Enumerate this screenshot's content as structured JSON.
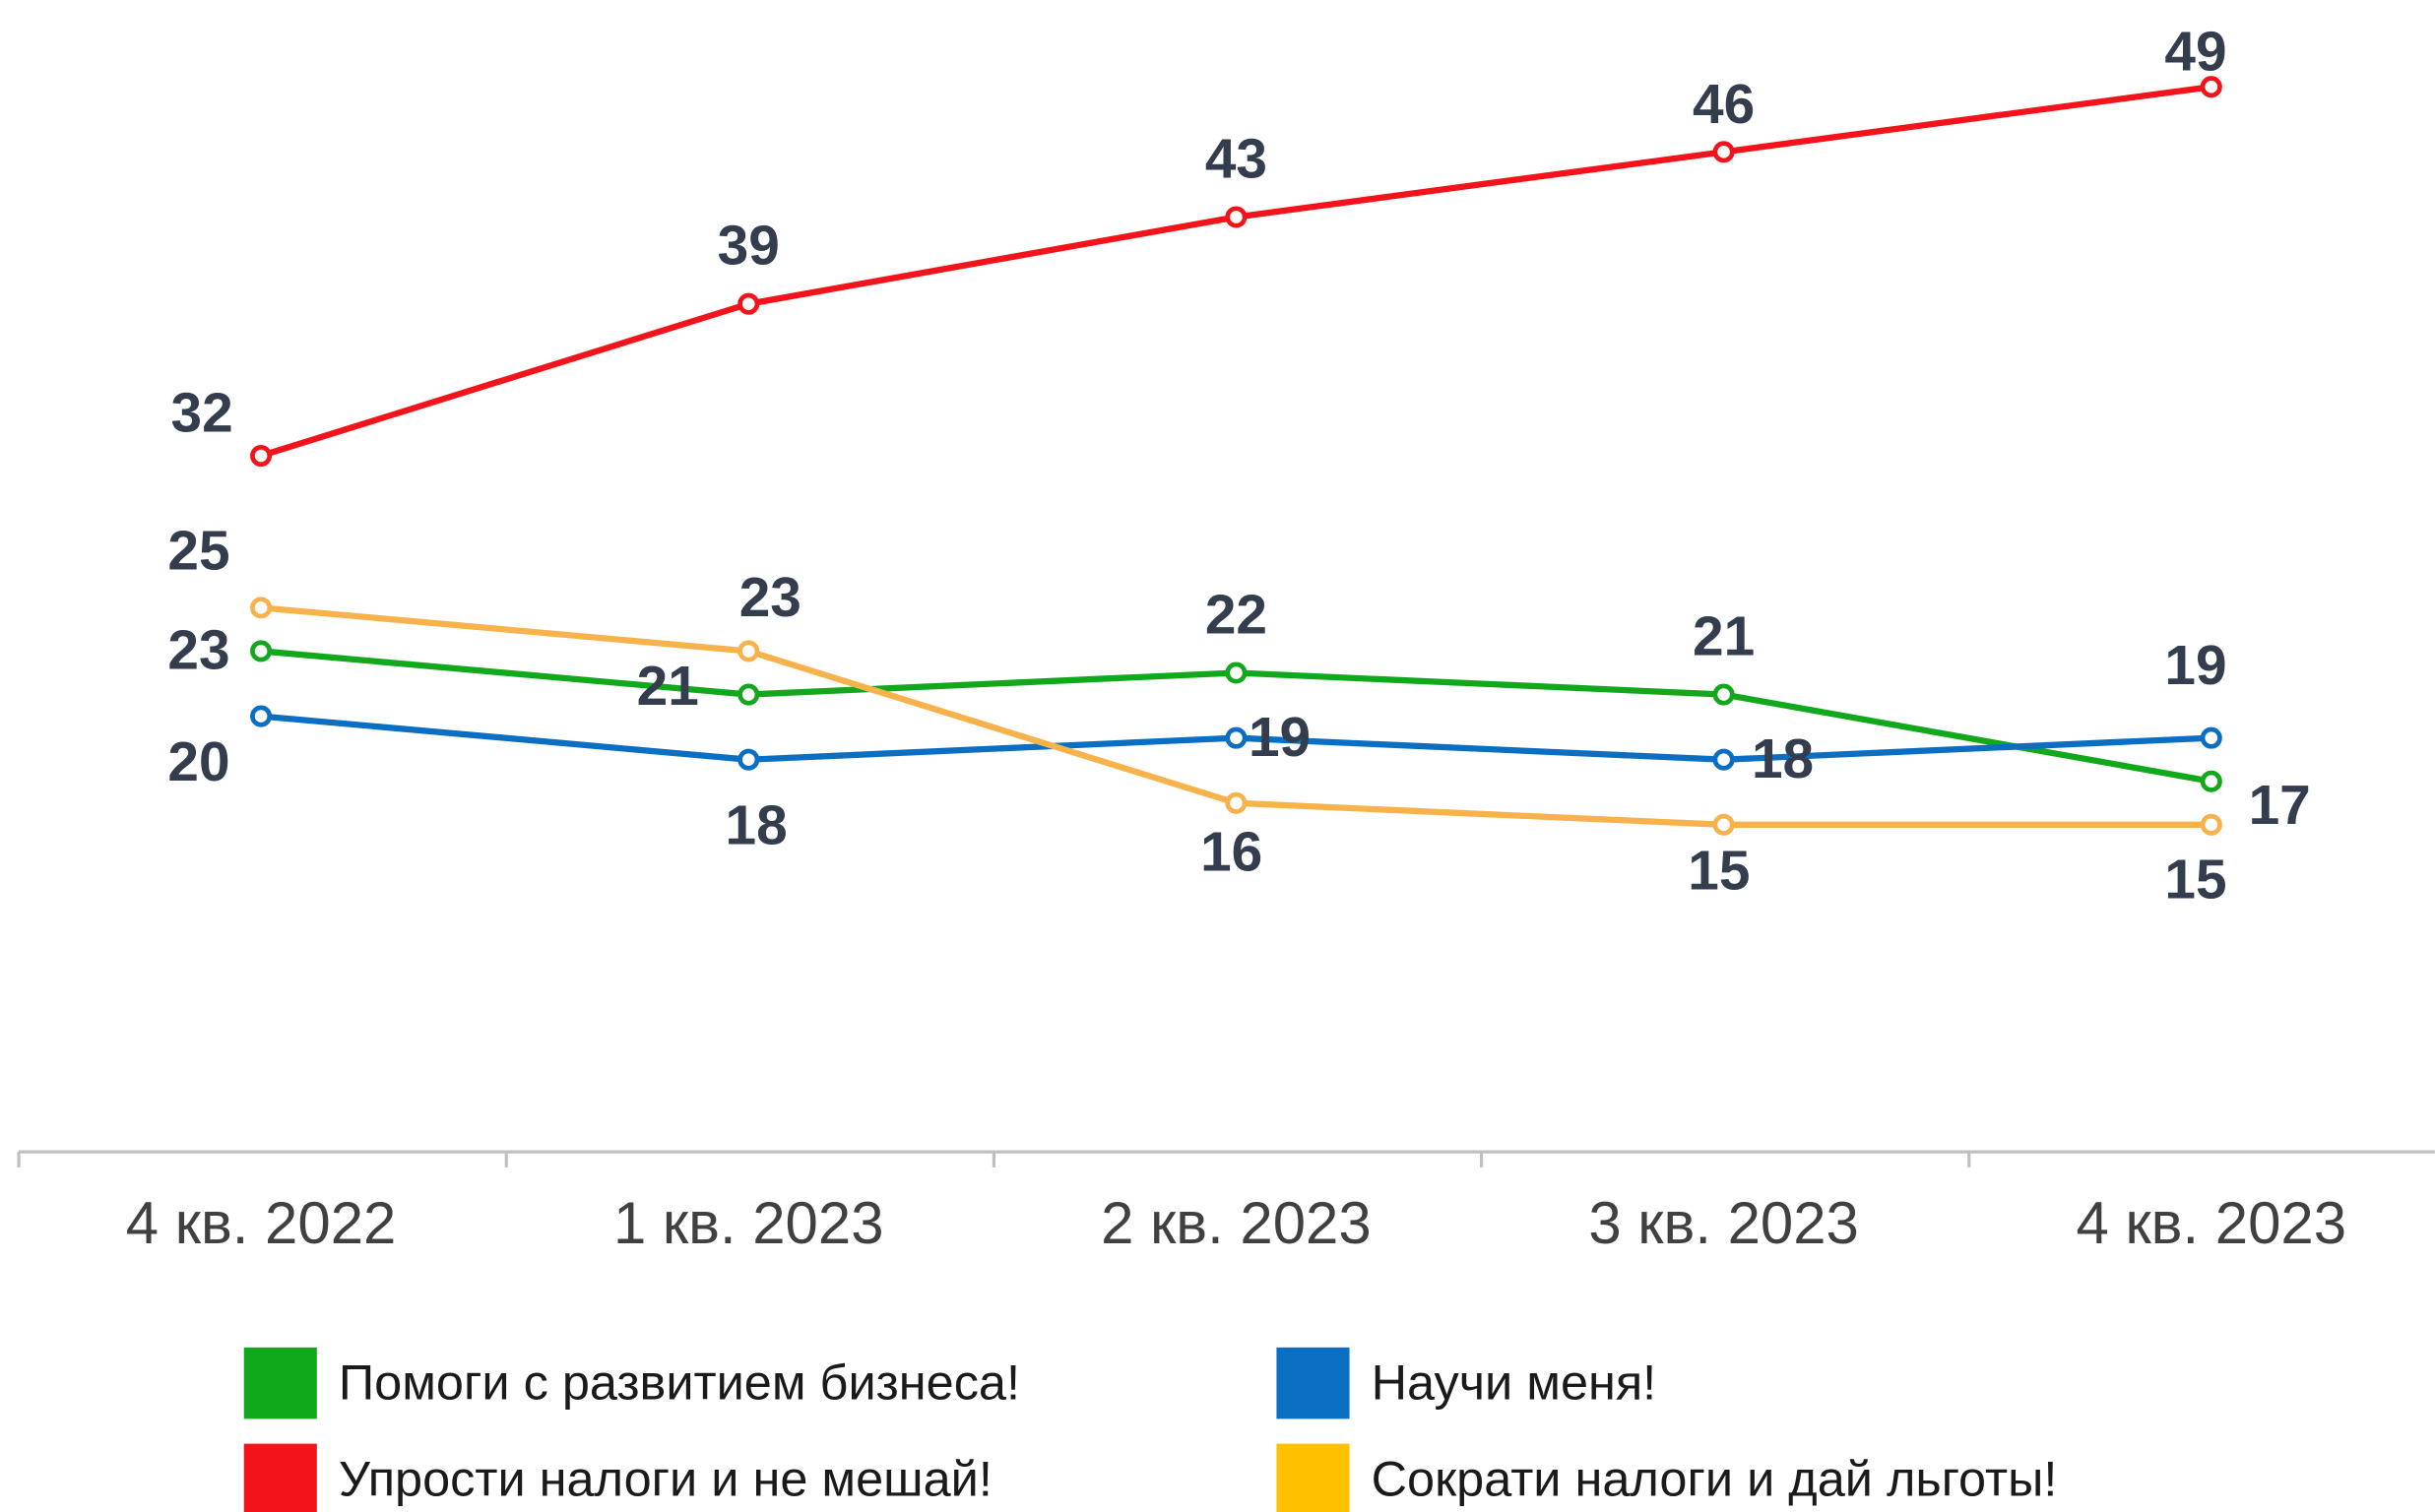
{
  "chart_data": {
    "type": "line",
    "categories": [
      "4 кв. 2022",
      "1 кв. 2023",
      "2 кв. 2023",
      "3 кв. 2023",
      "4 кв. 2023"
    ],
    "series": [
      {
        "name": "Помоги с развитием бизнеса!",
        "color": "#12a81c",
        "values": [
          23,
          21,
          22,
          21,
          17
        ]
      },
      {
        "name": "Научи меня!",
        "color": "#0a6fc2",
        "values": [
          20,
          18,
          19,
          18,
          19
        ]
      },
      {
        "name": "Упрости налоги и не мешай!",
        "color": "#f2141a",
        "values": [
          32,
          39,
          43,
          46,
          49
        ]
      },
      {
        "name": "Сократи налоги и дай льготы!",
        "color": "#f8b24c",
        "values": [
          25,
          23,
          16,
          15,
          15
        ]
      }
    ],
    "ylim": [
      0,
      53
    ],
    "grid": false
  }
}
